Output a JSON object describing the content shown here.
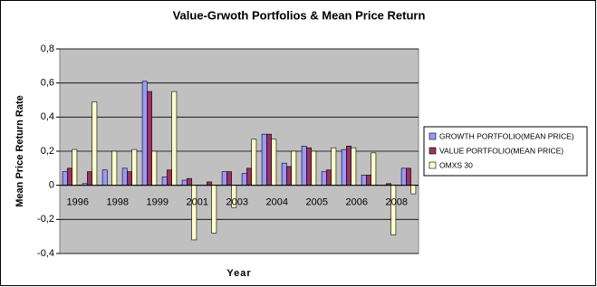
{
  "chart_data": {
    "type": "bar",
    "title": "Value-Grwoth Portfolios & Mean Price Return",
    "x_label": "Year",
    "y_label": "Mean Price Return Rate",
    "categories": [
      "1996",
      null,
      "1998",
      null,
      "1999",
      null,
      "2001",
      null,
      "2003",
      null,
      "2004",
      null,
      "2005",
      null,
      "2006",
      null,
      "2008",
      null
    ],
    "series": [
      {
        "name": "GROWTH PORTFOLIO(MEAN PRICE)",
        "color": "#9999ff",
        "values": [
          0.08,
          0.01,
          0.09,
          0.1,
          0.61,
          0.05,
          0.03,
          0.0,
          0.08,
          0.07,
          0.3,
          0.13,
          0.23,
          0.08,
          0.21,
          0.06,
          0.0,
          0.1
        ]
      },
      {
        "name": "VALUE PORTFOLIO(MEAN PRICE)",
        "color": "#993366",
        "values": [
          0.1,
          0.08,
          0.0,
          0.08,
          0.55,
          0.09,
          0.04,
          0.02,
          0.08,
          0.1,
          0.3,
          0.11,
          0.22,
          0.09,
          0.23,
          0.06,
          0.01,
          0.1
        ]
      },
      {
        "name": "OMXS 30",
        "color": "#ffffcc",
        "values": [
          0.21,
          0.49,
          0.2,
          0.21,
          0.2,
          0.55,
          -0.32,
          -0.28,
          -0.13,
          0.27,
          0.27,
          0.2,
          0.2,
          0.22,
          0.22,
          0.19,
          -0.29,
          -0.05
        ]
      }
    ],
    "ylim": [
      -0.4,
      0.8
    ],
    "yticks": [
      {
        "value": -0.4,
        "label": "-0,4"
      },
      {
        "value": -0.2,
        "label": "-0,2"
      },
      0,
      {
        "value": 0.2,
        "label": "0,2"
      },
      {
        "value": 0.4,
        "label": "0,4"
      },
      {
        "value": 0.6,
        "label": "0,6"
      },
      {
        "value": 0.8,
        "label": "0,8"
      }
    ],
    "grid": true,
    "legend": "right"
  }
}
